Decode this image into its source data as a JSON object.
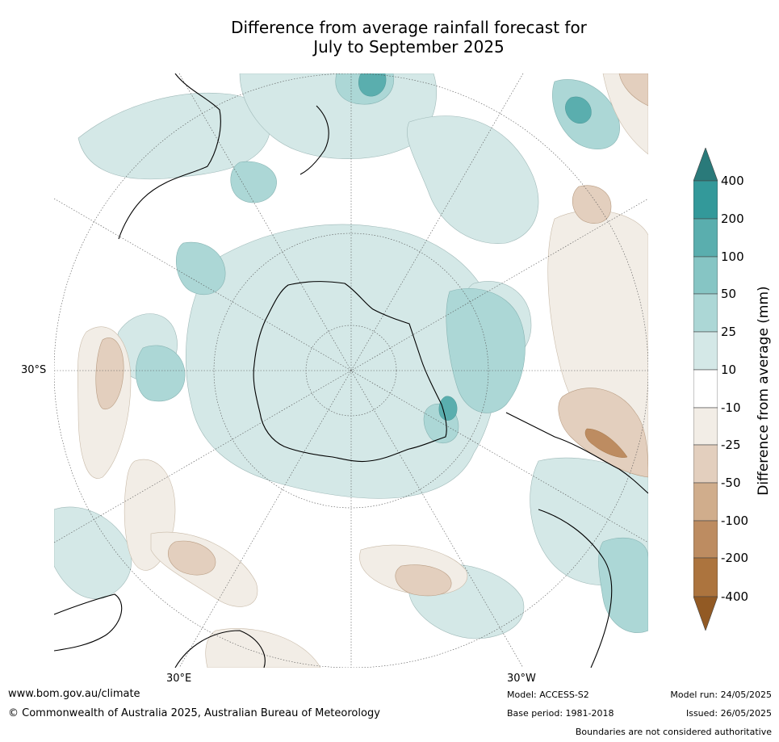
{
  "title": {
    "line1": "Difference from average rainfall forecast for",
    "line2": "July to September 2025"
  },
  "map": {
    "projection": "south-polar-stereographic",
    "lat_labels": [
      "30°S"
    ],
    "lon_labels": [
      "30°E",
      "30°W"
    ]
  },
  "colorbar": {
    "label": "Difference from average (mm)",
    "ticks": [
      "400",
      "200",
      "100",
      "50",
      "25",
      "10",
      "-10",
      "-25",
      "-50",
      "-100",
      "-200",
      "-400"
    ],
    "colors": {
      "above_400": "#2a7a7a",
      "200_400": "#33999a",
      "100_200": "#5aaeae",
      "50_100": "#86c5c4",
      "25_50": "#acd7d6",
      "10_25": "#d4e8e7",
      "neutral": "#ffffff",
      "m10_m25": "#f2ede6",
      "m25_m50": "#e3cfbe",
      "m50_m100": "#d0ad8c",
      "m100_m200": "#bd8c61",
      "m200_m400": "#ac743e",
      "below_m400": "#925a24"
    }
  },
  "footer": {
    "website": "www.bom.gov.au/climate",
    "copyright": "© Commonwealth of Australia 2025, Australian Bureau of Meteorology",
    "model": "Model: ACCESS-S2",
    "base_period": "Base period: 1981-2018",
    "model_run": "Model run: 24/05/2025",
    "issued": "Issued: 26/05/2025",
    "disclaimer": "Boundaries are not considered authoritative"
  }
}
